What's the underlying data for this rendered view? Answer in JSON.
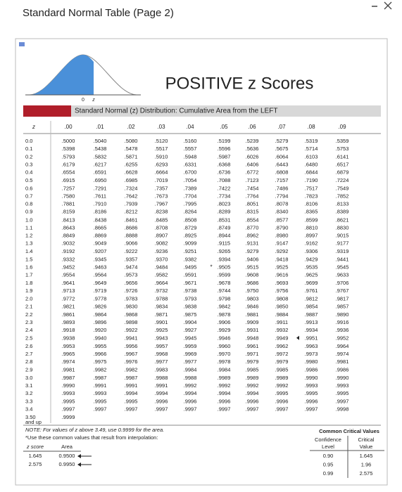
{
  "header": {
    "title": "Standard Normal Table (Page 2)"
  },
  "document": {
    "heading": "POSITIVE z Scores",
    "curve_labels": [
      "0",
      "z"
    ],
    "band_title": "Standard Normal (z) Distribution: Cumulative Area from the LEFT",
    "table": {
      "columns": [
        "z",
        ".00",
        ".01",
        ".02",
        ".03",
        ".04",
        ".05",
        ".06",
        ".07",
        ".08",
        ".09"
      ],
      "rows": [
        [
          "0.0",
          ".5000",
          ".5040",
          ".5080",
          ".5120",
          ".5160",
          ".5199",
          ".5239",
          ".5279",
          ".5319",
          ".5359"
        ],
        [
          "0.1",
          ".5398",
          ".5438",
          ".5478",
          ".5517",
          ".5557",
          ".5596",
          ".5636",
          ".5675",
          ".5714",
          ".5753"
        ],
        [
          "0.2",
          ".5793",
          ".5832",
          ".5871",
          ".5910",
          ".5948",
          ".5987",
          ".6026",
          ".6064",
          ".6103",
          ".6141"
        ],
        [
          "0.3",
          ".6179",
          ".6217",
          ".6255",
          ".6293",
          ".6331",
          ".6368",
          ".6406",
          ".6443",
          ".6480",
          ".6517"
        ],
        [
          "0.4",
          ".6554",
          ".6591",
          ".6628",
          ".6664",
          ".6700",
          ".6736",
          ".6772",
          ".6808",
          ".6844",
          ".6879"
        ],
        [
          "0.5",
          ".6915",
          ".6950",
          ".6985",
          ".7019",
          ".7054",
          ".7088",
          ".7123",
          ".7157",
          ".7190",
          ".7224"
        ],
        [
          "0.6",
          ".7257",
          ".7291",
          ".7324",
          ".7357",
          ".7389",
          ".7422",
          ".7454",
          ".7486",
          ".7517",
          ".7549"
        ],
        [
          "0.7",
          ".7580",
          ".7611",
          ".7642",
          ".7673",
          ".7704",
          ".7734",
          ".7764",
          ".7794",
          ".7823",
          ".7852"
        ],
        [
          "0.8",
          ".7881",
          ".7910",
          ".7939",
          ".7967",
          ".7995",
          ".8023",
          ".8051",
          ".8078",
          ".8106",
          ".8133"
        ],
        [
          "0.9",
          ".8159",
          ".8186",
          ".8212",
          ".8238",
          ".8264",
          ".8289",
          ".8315",
          ".8340",
          ".8365",
          ".8389"
        ],
        [
          "1.0",
          ".8413",
          ".8438",
          ".8461",
          ".8485",
          ".8508",
          ".8531",
          ".8554",
          ".8577",
          ".8599",
          ".8621"
        ],
        [
          "1.1",
          ".8643",
          ".8665",
          ".8686",
          ".8708",
          ".8729",
          ".8749",
          ".8770",
          ".8790",
          ".8810",
          ".8830"
        ],
        [
          "1.2",
          ".8849",
          ".8869",
          ".8888",
          ".8907",
          ".8925",
          ".8944",
          ".8962",
          ".8980",
          ".8997",
          ".9015"
        ],
        [
          "1.3",
          ".9032",
          ".9049",
          ".9066",
          ".9082",
          ".9099",
          ".9115",
          ".9131",
          ".9147",
          ".9162",
          ".9177"
        ],
        [
          "1.4",
          ".9192",
          ".9207",
          ".9222",
          ".9236",
          ".9251",
          ".9265",
          ".9279",
          ".9292",
          ".9306",
          ".9319"
        ],
        [
          "1.5",
          ".9332",
          ".9345",
          ".9357",
          ".9370",
          ".9382",
          ".9394",
          ".9406",
          ".9418",
          ".9429",
          ".9441"
        ],
        [
          "1.6",
          ".9452",
          ".9463",
          ".9474",
          ".9484",
          ".9495",
          ".9505",
          ".9515",
          ".9525",
          ".9535",
          ".9545"
        ],
        [
          "1.7",
          ".9554",
          ".9564",
          ".9573",
          ".9582",
          ".9591",
          ".9599",
          ".9608",
          ".9616",
          ".9625",
          ".9633"
        ],
        [
          "1.8",
          ".9641",
          ".9649",
          ".9656",
          ".9664",
          ".9671",
          ".9678",
          ".9686",
          ".9693",
          ".9699",
          ".9706"
        ],
        [
          "1.9",
          ".9713",
          ".9719",
          ".9726",
          ".9732",
          ".9738",
          ".9744",
          ".9750",
          ".9756",
          ".9761",
          ".9767"
        ],
        [
          "2.0",
          ".9772",
          ".9778",
          ".9783",
          ".9788",
          ".9793",
          ".9798",
          ".9803",
          ".9808",
          ".9812",
          ".9817"
        ],
        [
          "2.1",
          ".9821",
          ".9826",
          ".9830",
          ".9834",
          ".9838",
          ".9842",
          ".9846",
          ".9850",
          ".9854",
          ".9857"
        ],
        [
          "2.2",
          ".9861",
          ".9864",
          ".9868",
          ".9871",
          ".9875",
          ".9878",
          ".9881",
          ".9884",
          ".9887",
          ".9890"
        ],
        [
          "2.3",
          ".9893",
          ".9896",
          ".9898",
          ".9901",
          ".9904",
          ".9906",
          ".9909",
          ".9911",
          ".9913",
          ".9916"
        ],
        [
          "2.4",
          ".9918",
          ".9920",
          ".9922",
          ".9925",
          ".9927",
          ".9929",
          ".9931",
          ".9932",
          ".9934",
          ".9936"
        ],
        [
          "2.5",
          ".9938",
          ".9940",
          ".9941",
          ".9943",
          ".9945",
          ".9946",
          ".9948",
          ".9949",
          ".9951",
          ".9952"
        ],
        [
          "2.6",
          ".9953",
          ".9955",
          ".9956",
          ".9957",
          ".9959",
          ".9960",
          ".9961",
          ".9962",
          ".9963",
          ".9964"
        ],
        [
          "2.7",
          ".9965",
          ".9966",
          ".9967",
          ".9968",
          ".9969",
          ".9970",
          ".9971",
          ".9972",
          ".9973",
          ".9974"
        ],
        [
          "2.8",
          ".9974",
          ".9975",
          ".9976",
          ".9977",
          ".9977",
          ".9978",
          ".9979",
          ".9979",
          ".9980",
          ".9981"
        ],
        [
          "2.9",
          ".9981",
          ".9982",
          ".9982",
          ".9983",
          ".9984",
          ".9984",
          ".9985",
          ".9985",
          ".9986",
          ".9986"
        ],
        [
          "3.0",
          ".9987",
          ".9987",
          ".9987",
          ".9988",
          ".9988",
          ".9989",
          ".9989",
          ".9989",
          ".9990",
          ".9990"
        ],
        [
          "3.1",
          ".9990",
          ".9991",
          ".9991",
          ".9991",
          ".9992",
          ".9992",
          ".9992",
          ".9992",
          ".9993",
          ".9993"
        ],
        [
          "3.2",
          ".9993",
          ".9993",
          ".9994",
          ".9994",
          ".9994",
          ".9994",
          ".9994",
          ".9995",
          ".9995",
          ".9995"
        ],
        [
          "3.3",
          ".9995",
          ".9995",
          ".9995",
          ".9996",
          ".9996",
          ".9996",
          ".9996",
          ".9996",
          ".9996",
          ".9997"
        ],
        [
          "3.4",
          ".9997",
          ".9997",
          ".9997",
          ".9997",
          ".9997",
          ".9997",
          ".9997",
          ".9997",
          ".9997",
          ".9998"
        ],
        [
          "3.50",
          ".9999"
        ]
      ],
      "last_row_note": "and up"
    },
    "notes": [
      "NOTE: For values of z above 3.49, use 0.9999 for the area.",
      "*Use these common values that result from interpolation:"
    ],
    "interpolation": {
      "columns": [
        "z score",
        "Area"
      ],
      "rows": [
        [
          "1.645",
          "0.9500"
        ],
        [
          "2.575",
          "0.9950"
        ]
      ]
    },
    "critical": {
      "title": "Common Critical Values",
      "columns": [
        [
          "Confidence",
          "Level"
        ],
        [
          "Critical",
          "Value"
        ]
      ],
      "rows": [
        [
          "0.90",
          "1.645"
        ],
        [
          "0.95",
          "1.96"
        ],
        [
          "0.99",
          "2.575"
        ]
      ]
    }
  }
}
